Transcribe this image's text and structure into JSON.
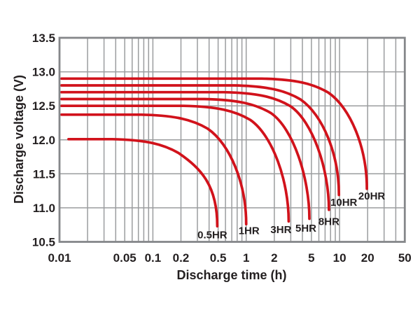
{
  "chart_data": {
    "type": "line",
    "xlabel": "Discharge time (h)",
    "ylabel": "Discharge voltage (V)",
    "x_scale": "log",
    "xlim": [
      0.01,
      50
    ],
    "ylim": [
      10.5,
      13.5
    ],
    "grid": true,
    "x_ticks": [
      {
        "value": 0.01,
        "label": "0.01"
      },
      {
        "value": 0.05,
        "label": "0.05"
      },
      {
        "value": 0.1,
        "label": "0.1"
      },
      {
        "value": 0.2,
        "label": "0.2"
      },
      {
        "value": 0.5,
        "label": "0.5"
      },
      {
        "value": 1,
        "label": "1"
      },
      {
        "value": 2,
        "label": "2"
      },
      {
        "value": 5,
        "label": "5"
      },
      {
        "value": 10,
        "label": "10"
      },
      {
        "value": 20,
        "label": "20"
      },
      {
        "value": 50,
        "label": "50"
      }
    ],
    "y_ticks": [
      {
        "value": 10.5,
        "label": "10.5"
      },
      {
        "value": 11.0,
        "label": "11.0"
      },
      {
        "value": 11.5,
        "label": "11.5"
      },
      {
        "value": 12.0,
        "label": "12.0"
      },
      {
        "value": 12.5,
        "label": "12.5"
      },
      {
        "value": 13.0,
        "label": "13.0"
      },
      {
        "value": 13.5,
        "label": "13.5"
      }
    ],
    "x_gridlines": [
      0.02,
      0.03,
      0.04,
      0.05,
      0.06,
      0.07,
      0.08,
      0.09,
      0.1,
      0.2,
      0.3,
      0.4,
      0.5,
      0.6,
      0.7,
      0.8,
      0.9,
      1,
      2,
      3,
      4,
      5,
      6,
      7,
      8,
      9,
      10,
      20,
      30,
      40
    ],
    "y_gridlines": [
      11.0,
      11.5,
      12.0,
      12.5,
      13.0
    ],
    "series": [
      {
        "name": "0.5HR",
        "plateau_v": 12.01,
        "start_t": 0.0125,
        "end_t": 0.49,
        "end_v": 10.73,
        "points": [
          [
            0.0125,
            12.01
          ],
          [
            0.05,
            12.01
          ],
          [
            0.1,
            12.0
          ],
          [
            0.2,
            11.88
          ],
          [
            0.3,
            11.65
          ],
          [
            0.4,
            11.2
          ],
          [
            0.49,
            10.73
          ]
        ]
      },
      {
        "name": "1HR",
        "plateau_v": 12.37,
        "start_t": 0.0105,
        "end_t": 1.0,
        "end_v": 10.76,
        "points": [
          [
            0.0105,
            12.37
          ],
          [
            0.1,
            12.37
          ],
          [
            0.3,
            12.3
          ],
          [
            0.5,
            12.17
          ],
          [
            0.7,
            11.9
          ],
          [
            0.9,
            11.3
          ],
          [
            1.0,
            10.76
          ]
        ]
      },
      {
        "name": "3HR",
        "plateau_v": 12.5,
        "start_t": 0.0105,
        "end_t": 2.85,
        "end_v": 10.8,
        "points": [
          [
            0.0105,
            12.5
          ],
          [
            0.3,
            12.5
          ],
          [
            0.8,
            12.42
          ],
          [
            1.5,
            12.22
          ],
          [
            2.0,
            11.95
          ],
          [
            2.6,
            11.2
          ],
          [
            2.85,
            10.8
          ]
        ]
      },
      {
        "name": "5HR",
        "plateau_v": 12.6,
        "start_t": 0.0105,
        "end_t": 4.75,
        "end_v": 10.84,
        "points": [
          [
            0.0105,
            12.6
          ],
          [
            0.5,
            12.6
          ],
          [
            1.5,
            12.5
          ],
          [
            2.5,
            12.32
          ],
          [
            3.5,
            12.0
          ],
          [
            4.4,
            11.2
          ],
          [
            4.75,
            10.84
          ]
        ]
      },
      {
        "name": "8HR",
        "plateau_v": 12.7,
        "start_t": 0.0105,
        "end_t": 7.7,
        "end_v": 10.97,
        "points": [
          [
            0.0105,
            12.7
          ],
          [
            1,
            12.7
          ],
          [
            2.5,
            12.6
          ],
          [
            4,
            12.42
          ],
          [
            5.5,
            12.1
          ],
          [
            7,
            11.4
          ],
          [
            7.7,
            10.97
          ]
        ]
      },
      {
        "name": "10HR",
        "plateau_v": 12.8,
        "start_t": 0.0105,
        "end_t": 9.85,
        "end_v": 11.19,
        "points": [
          [
            0.0105,
            12.8
          ],
          [
            1,
            12.8
          ],
          [
            3,
            12.7
          ],
          [
            5,
            12.52
          ],
          [
            7,
            12.2
          ],
          [
            9,
            11.7
          ],
          [
            9.85,
            11.19
          ]
        ]
      },
      {
        "name": "20HR",
        "plateau_v": 12.9,
        "start_t": 0.0105,
        "end_t": 19.6,
        "end_v": 11.28,
        "points": [
          [
            0.0105,
            12.9
          ],
          [
            2,
            12.9
          ],
          [
            5,
            12.8
          ],
          [
            10,
            12.5
          ],
          [
            14,
            12.1
          ],
          [
            18,
            11.6
          ],
          [
            19.6,
            11.28
          ]
        ]
      }
    ],
    "colors": {
      "curve": "#d1121b",
      "grid": "#9b9d9f",
      "frame": "#85878a",
      "text": "#231f20",
      "background": "#ffffff"
    }
  }
}
